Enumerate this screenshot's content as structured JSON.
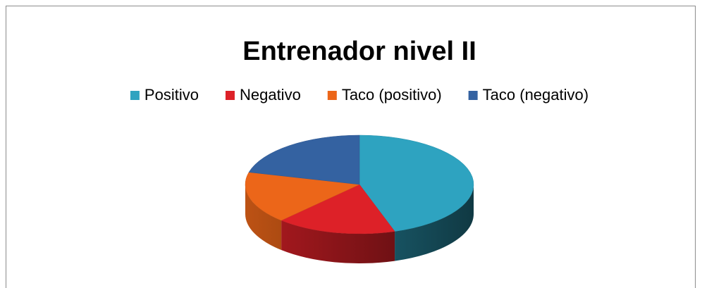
{
  "chart_data": {
    "type": "pie",
    "title": "Entrenador nivel II",
    "categories": [
      "Positivo",
      "Negativo",
      "Taco (positivo)",
      "Taco (negativo)"
    ],
    "values": [
      45,
      17,
      17,
      21
    ],
    "colors": [
      "#2ea3c0",
      "#dd2128",
      "#ec6619",
      "#3462a1"
    ],
    "legend": "top",
    "three_d": true
  }
}
